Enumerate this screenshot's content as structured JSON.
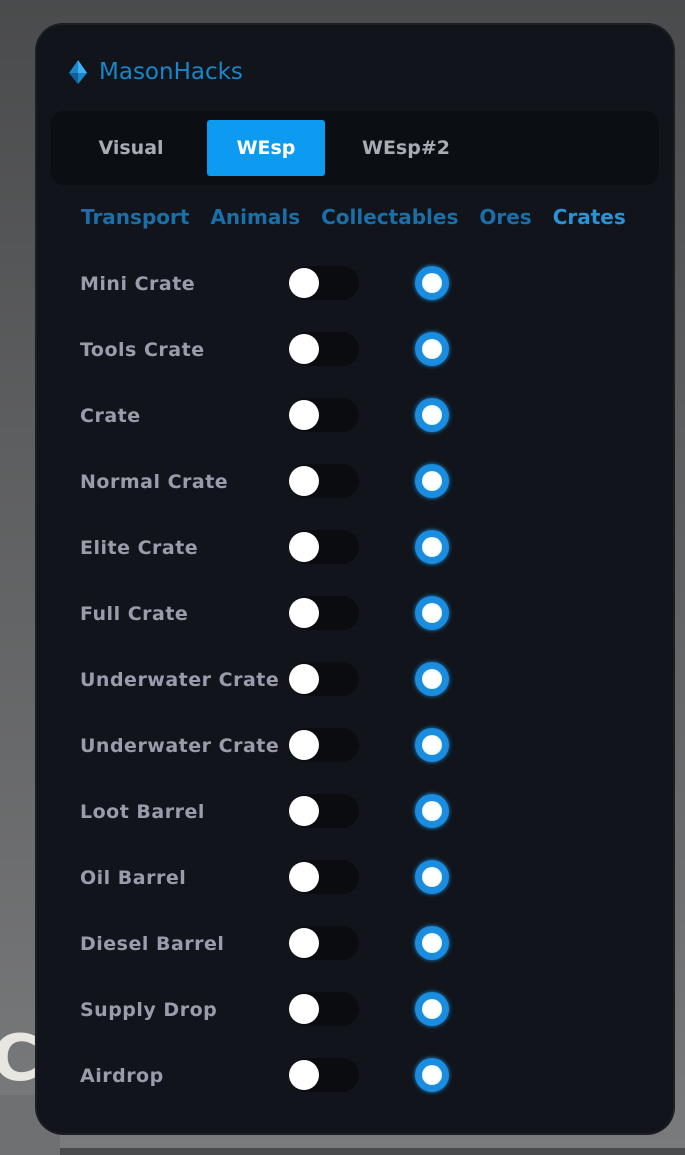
{
  "background": {
    "partial_text": "CT"
  },
  "app": {
    "title": "MasonHacks",
    "accent": "#0d9bf2",
    "logo_icon": "blue-diamond-icon"
  },
  "tabs": [
    {
      "label": "Visual",
      "active": false
    },
    {
      "label": "WEsp",
      "active": true
    },
    {
      "label": "WEsp#2",
      "active": false
    }
  ],
  "subtabs": [
    {
      "label": "Transport",
      "active": false
    },
    {
      "label": "Animals",
      "active": false
    },
    {
      "label": "Collectables",
      "active": false
    },
    {
      "label": "Ores",
      "active": false
    },
    {
      "label": "Crates",
      "active": true
    }
  ],
  "items": [
    {
      "label": "Mini Crate",
      "toggle_on": false,
      "radio_on": true
    },
    {
      "label": "Tools Crate",
      "toggle_on": false,
      "radio_on": true
    },
    {
      "label": "Crate",
      "toggle_on": false,
      "radio_on": true
    },
    {
      "label": "Normal Crate",
      "toggle_on": false,
      "radio_on": true
    },
    {
      "label": "Elite Crate",
      "toggle_on": false,
      "radio_on": true
    },
    {
      "label": "Full Crate",
      "toggle_on": false,
      "radio_on": true
    },
    {
      "label": "Underwater Crate",
      "toggle_on": false,
      "radio_on": true
    },
    {
      "label": "Underwater Crate",
      "toggle_on": false,
      "radio_on": true
    },
    {
      "label": "Loot Barrel",
      "toggle_on": false,
      "radio_on": true
    },
    {
      "label": "Oil Barrel",
      "toggle_on": false,
      "radio_on": true
    },
    {
      "label": "Diesel Barrel",
      "toggle_on": false,
      "radio_on": true
    },
    {
      "label": "Supply Drop",
      "toggle_on": false,
      "radio_on": true
    },
    {
      "label": "Airdrop",
      "toggle_on": false,
      "radio_on": true
    }
  ]
}
